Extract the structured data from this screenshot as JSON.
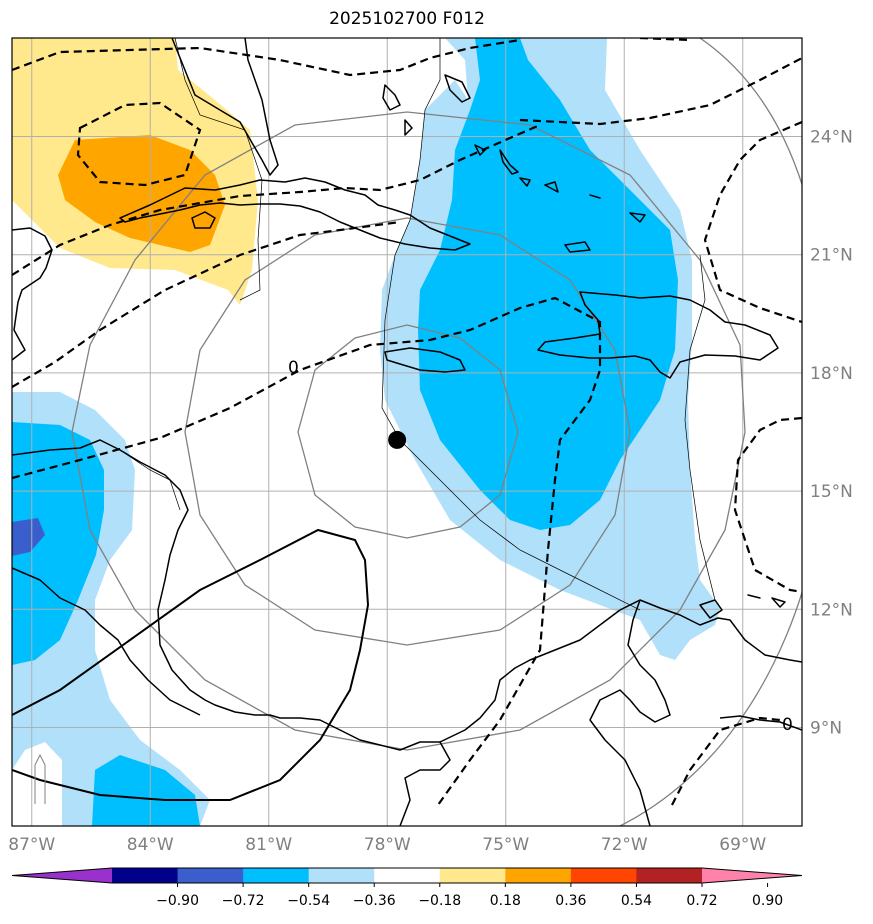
{
  "title": "2025102700 F012",
  "map": {
    "lon_range": [
      -87.5,
      -67.5
    ],
    "lat_range": [
      6.5,
      26.5
    ],
    "lon_ticks": [
      "87°W",
      "84°W",
      "81°W",
      "78°W",
      "75°W",
      "72°W",
      "69°W"
    ],
    "lat_ticks": [
      "9°N",
      "12°N",
      "15°N",
      "18°N",
      "21°N",
      "24°N"
    ],
    "storm_center": {
      "lon": -77.75,
      "lat": 16.3
    },
    "contour_label": "0",
    "grid_color": "#b0b0b0",
    "range_ring_color": "#808080"
  },
  "colorbar": {
    "ticks": [
      "−0.90",
      "−0.72",
      "−0.54",
      "−0.36",
      "−0.18",
      "0.18",
      "0.36",
      "0.54",
      "0.72",
      "0.90"
    ],
    "colors": [
      "#9932cc",
      "#00008b",
      "#3a5fcd",
      "#00bfff",
      "#b0e0fa",
      "#ffffff",
      "#ffe98c",
      "#ffa500",
      "#ff4500",
      "#b22222",
      "#ff82ab"
    ]
  }
}
